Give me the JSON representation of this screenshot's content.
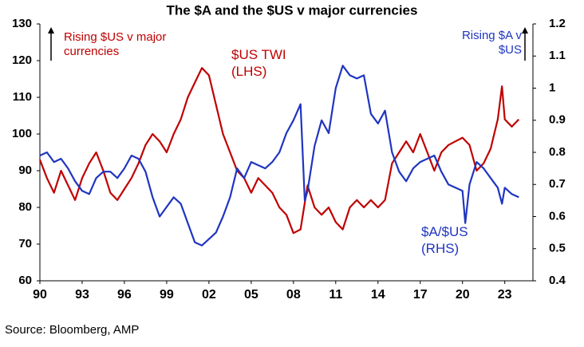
{
  "chart_data": {
    "type": "line",
    "title": "The $A and the $US v major currencies",
    "source": "Source: Bloomberg, AMP",
    "annotations": [
      "Rising $US v major currencies",
      "Rising $A v $US"
    ],
    "xlim": [
      1990,
      2025
    ],
    "xticks": [
      {
        "value": 1990,
        "label": "90"
      },
      {
        "value": 1993,
        "label": "93"
      },
      {
        "value": 1996,
        "label": "96"
      },
      {
        "value": 1999,
        "label": "99"
      },
      {
        "value": 2002,
        "label": "02"
      },
      {
        "value": 2005,
        "label": "05"
      },
      {
        "value": 2008,
        "label": "08"
      },
      {
        "value": 2011,
        "label": "11"
      },
      {
        "value": 2014,
        "label": "14"
      },
      {
        "value": 2017,
        "label": "17"
      },
      {
        "value": 2020,
        "label": "20"
      },
      {
        "value": 2023,
        "label": "23"
      }
    ],
    "ylim": [
      60,
      130
    ],
    "yticks": [
      60,
      70,
      80,
      90,
      100,
      110,
      120,
      130
    ],
    "y2lim": [
      0.4,
      1.2
    ],
    "y2ticks": [
      0.4,
      0.5,
      0.6,
      0.7,
      0.8,
      0.9,
      1,
      1.1,
      1.2
    ],
    "grid": false,
    "series": [
      {
        "name": "$US TWI (LHS)",
        "color": "#c00000",
        "axis": "y",
        "x": [
          1990,
          1990.5,
          1991,
          1991.5,
          1992,
          1992.5,
          1993,
          1993.5,
          1994,
          1994.5,
          1995,
          1995.5,
          1996,
          1996.5,
          1997,
          1997.5,
          1998,
          1998.5,
          1999,
          1999.5,
          2000,
          2000.5,
          2001,
          2001.5,
          2002,
          2002.5,
          2003,
          2003.5,
          2004,
          2004.5,
          2005,
          2005.5,
          2006,
          2006.5,
          2007,
          2007.5,
          2008,
          2008.5,
          2009,
          2009.5,
          2010,
          2010.5,
          2011,
          2011.5,
          2012,
          2012.5,
          2013,
          2013.5,
          2014,
          2014.5,
          2015,
          2015.5,
          2016,
          2016.5,
          2017,
          2017.5,
          2018,
          2018.5,
          2019,
          2019.5,
          2020,
          2020.5,
          2021,
          2021.5,
          2022,
          2022.5,
          2022.8,
          2023,
          2023.5,
          2024
        ],
        "values": [
          93,
          88,
          84,
          90,
          86,
          82,
          88,
          92,
          95,
          90,
          84,
          82,
          85,
          88,
          92,
          97,
          100,
          98,
          95,
          100,
          104,
          110,
          114,
          118,
          116,
          108,
          100,
          95,
          90,
          88,
          84,
          88,
          86,
          84,
          80,
          78,
          73,
          74,
          86,
          80,
          78,
          80,
          76,
          74,
          80,
          82,
          80,
          82,
          80,
          82,
          92,
          95,
          98,
          95,
          100,
          95,
          90,
          95,
          97,
          98,
          99,
          97,
          90,
          92,
          96,
          104,
          113,
          104,
          102,
          104
        ]
      },
      {
        "name": "$A/$US (RHS)",
        "color": "#1f35c0",
        "axis": "y2",
        "x": [
          1990,
          1990.5,
          1991,
          1991.5,
          1992,
          1992.5,
          1993,
          1993.5,
          1994,
          1994.5,
          1995,
          1995.5,
          1996,
          1996.5,
          1997,
          1997.5,
          1998,
          1998.5,
          1999,
          1999.5,
          2000,
          2000.5,
          2001,
          2001.5,
          2002,
          2002.5,
          2003,
          2003.5,
          2004,
          2004.5,
          2005,
          2005.5,
          2006,
          2006.5,
          2007,
          2007.5,
          2008,
          2008.5,
          2008.8,
          2009,
          2009.5,
          2010,
          2010.5,
          2011,
          2011.5,
          2012,
          2012.5,
          2013,
          2013.5,
          2014,
          2014.5,
          2015,
          2015.5,
          2016,
          2016.5,
          2017,
          2017.5,
          2018,
          2018.5,
          2019,
          2019.5,
          2020,
          2020.2,
          2020.5,
          2021,
          2021.5,
          2022,
          2022.5,
          2022.8,
          2023,
          2023.5,
          2024
        ],
        "values": [
          0.79,
          0.8,
          0.77,
          0.78,
          0.75,
          0.71,
          0.68,
          0.67,
          0.72,
          0.74,
          0.74,
          0.72,
          0.75,
          0.79,
          0.78,
          0.74,
          0.66,
          0.6,
          0.63,
          0.66,
          0.64,
          0.58,
          0.52,
          0.51,
          0.53,
          0.55,
          0.6,
          0.66,
          0.75,
          0.72,
          0.77,
          0.76,
          0.75,
          0.77,
          0.8,
          0.86,
          0.9,
          0.95,
          0.65,
          0.68,
          0.82,
          0.9,
          0.86,
          1.0,
          1.07,
          1.04,
          1.03,
          1.04,
          0.92,
          0.89,
          0.93,
          0.8,
          0.74,
          0.71,
          0.75,
          0.77,
          0.78,
          0.79,
          0.74,
          0.7,
          0.69,
          0.68,
          0.58,
          0.7,
          0.77,
          0.75,
          0.72,
          0.69,
          0.64,
          0.69,
          0.67,
          0.66
        ]
      }
    ]
  }
}
